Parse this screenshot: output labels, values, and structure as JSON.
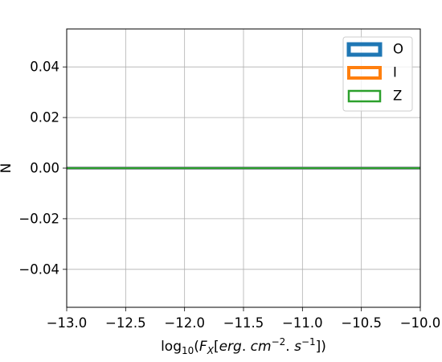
{
  "chart_data": {
    "type": "histogram",
    "xlabel": {
      "prefix": "log",
      "prefix_sub": "10",
      "open": "(",
      "var": "F",
      "var_sub": "X",
      "bracket_open": "[",
      "unit1": "erg",
      "sep1": ". ",
      "unit2": "cm",
      "exp2": "−2",
      "sep2": ". ",
      "unit3": "s",
      "exp3": "−1",
      "close": "])"
    },
    "ylabel": "N",
    "xlim": [
      -13.0,
      -10.0
    ],
    "ylim": [
      -0.055,
      0.055
    ],
    "xticks": [
      -13.0,
      -12.5,
      -12.0,
      -11.5,
      -11.0,
      -10.5,
      -10.0
    ],
    "xtick_labels": [
      "−13.0",
      "−12.5",
      "−12.0",
      "−11.5",
      "−11.0",
      "−10.5",
      "−10.0"
    ],
    "yticks": [
      -0.04,
      -0.02,
      0.0,
      0.02,
      0.04
    ],
    "ytick_labels": [
      "−0.04",
      "−0.02",
      "0.00",
      "0.02",
      "0.04"
    ],
    "grid": true,
    "legend_position": "top-right",
    "series": [
      {
        "name": "O",
        "color": "#1f77b4",
        "style": "step-outline",
        "x": [
          -13.0,
          -10.0
        ],
        "values": [
          0,
          0
        ]
      },
      {
        "name": "I",
        "color": "#ff7f0e",
        "style": "step-outline",
        "x": [
          -13.0,
          -10.0
        ],
        "values": [
          0,
          0
        ]
      },
      {
        "name": "Z",
        "color": "#2ca02c",
        "style": "step-outline",
        "x": [
          -13.0,
          -10.0
        ],
        "values": [
          0,
          0
        ]
      }
    ]
  }
}
